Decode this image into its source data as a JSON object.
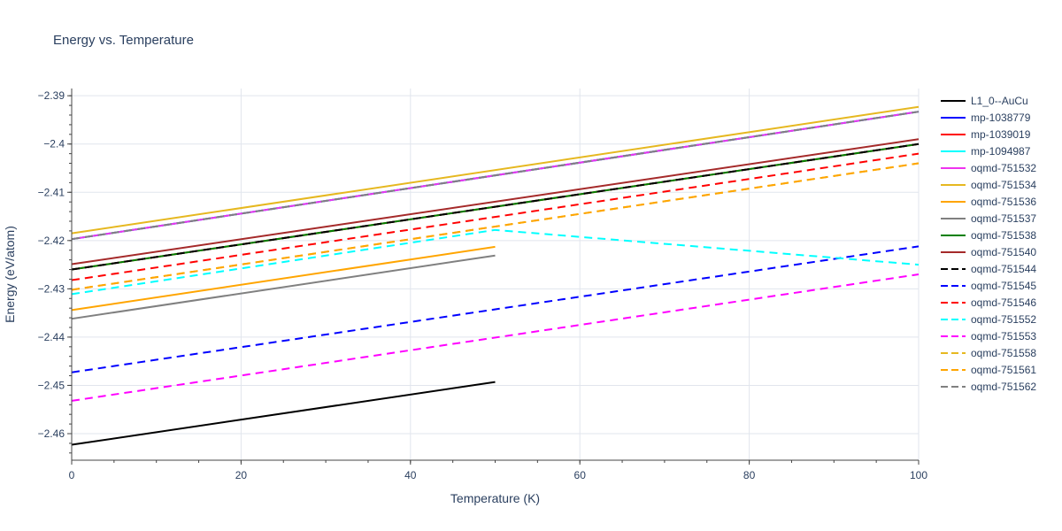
{
  "chart_data": {
    "type": "line",
    "title": "Energy vs. Temperature",
    "xlabel": "Temperature (K)",
    "ylabel": "Energy (eV/atom)",
    "xlim": [
      0,
      100
    ],
    "ylim": [
      -2.4655,
      -2.3885
    ],
    "xticks": [
      0,
      20,
      40,
      60,
      80,
      100
    ],
    "yticks": [
      -2.46,
      -2.45,
      -2.44,
      -2.43,
      -2.42,
      -2.41,
      -2.4,
      -2.39
    ],
    "ytick_labels": [
      "−2.46",
      "−2.45",
      "−2.44",
      "−2.43",
      "−2.42",
      "−2.41",
      "−2.4",
      "−2.39"
    ],
    "grid": true,
    "legend_position": "right",
    "series": [
      {
        "name": "L1_0--AuCu",
        "color": "#000000",
        "dash": "solid",
        "x": [
          0,
          50
        ],
        "y": [
          -2.4623,
          -2.4493
        ]
      },
      {
        "name": "mp-1038779",
        "color": "#0000ff",
        "dash": "solid",
        "x": [
          0,
          100
        ],
        "y": [
          -2.4197,
          -2.3933
        ]
      },
      {
        "name": "mp-1039019",
        "color": "#ff0000",
        "dash": "solid",
        "x": [
          0,
          100
        ],
        "y": [
          -2.426,
          -2.4
        ]
      },
      {
        "name": "mp-1094987",
        "color": "#00ffff",
        "dash": "solid",
        "x": [
          0,
          100
        ],
        "y": [
          -2.4197,
          -2.3933
        ]
      },
      {
        "name": "oqmd-751532",
        "color": "#ee33ee",
        "dash": "solid",
        "x": [
          0,
          100
        ],
        "y": [
          -2.4197,
          -2.3933
        ]
      },
      {
        "name": "oqmd-751534",
        "color": "#e6b820",
        "dash": "solid",
        "x": [
          0,
          100
        ],
        "y": [
          -2.4185,
          -2.3923
        ]
      },
      {
        "name": "oqmd-751536",
        "color": "#ffa500",
        "dash": "solid",
        "x": [
          0,
          50
        ],
        "y": [
          -2.4344,
          -2.4213
        ]
      },
      {
        "name": "oqmd-751537",
        "color": "#808080",
        "dash": "solid",
        "x": [
          0,
          50
        ],
        "y": [
          -2.4362,
          -2.4231
        ]
      },
      {
        "name": "oqmd-751538",
        "color": "#008000",
        "dash": "solid",
        "x": [
          0,
          100
        ],
        "y": [
          -2.426,
          -2.4
        ]
      },
      {
        "name": "oqmd-751540",
        "color": "#a52a2a",
        "dash": "solid",
        "x": [
          0,
          100
        ],
        "y": [
          -2.4249,
          -2.399
        ]
      },
      {
        "name": "oqmd-751544",
        "color": "#000000",
        "dash": "dash",
        "x": [
          0,
          100
        ],
        "y": [
          -2.426,
          -2.4
        ]
      },
      {
        "name": "oqmd-751545",
        "color": "#0000ff",
        "dash": "dash",
        "x": [
          0,
          100
        ],
        "y": [
          -2.4473,
          -2.4212
        ]
      },
      {
        "name": "oqmd-751546",
        "color": "#ff0000",
        "dash": "dash",
        "x": [
          0,
          100
        ],
        "y": [
          -2.4282,
          -2.402
        ]
      },
      {
        "name": "oqmd-751552",
        "color": "#00ffff",
        "dash": "dash",
        "x": [
          0,
          50,
          100
        ],
        "y": [
          -2.4311,
          -2.4178,
          -2.425
        ]
      },
      {
        "name": "oqmd-751553",
        "color": "#ff00ff",
        "dash": "dash",
        "x": [
          0,
          100
        ],
        "y": [
          -2.4532,
          -2.427
        ]
      },
      {
        "name": "oqmd-751558",
        "color": "#e6b820",
        "dash": "dash",
        "x": [
          0,
          100
        ],
        "y": [
          -2.4302,
          -2.404
        ]
      },
      {
        "name": "oqmd-751561",
        "color": "#ffa500",
        "dash": "dash",
        "x": [
          0,
          100
        ],
        "y": [
          -2.4302,
          -2.404
        ]
      },
      {
        "name": "oqmd-751562",
        "color": "#808080",
        "dash": "dash",
        "x": [
          0,
          100
        ],
        "y": [
          -2.4197,
          -2.3933
        ]
      }
    ]
  }
}
